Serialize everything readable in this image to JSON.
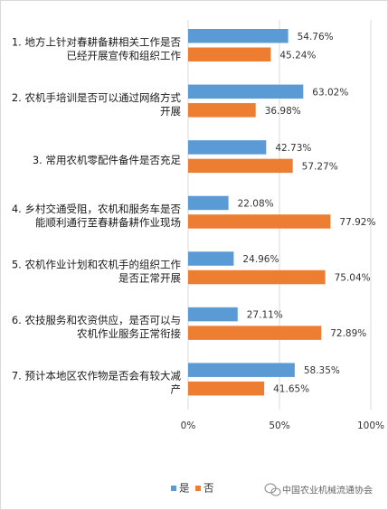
{
  "chart_data": {
    "type": "bar",
    "orientation": "horizontal",
    "categories": [
      [
        "1. 地方上针对春耕备耕相关工作是否",
        "已经开展宣传和组织工作"
      ],
      [
        "2. 农机手培训是否可以通过网络方式",
        "开展"
      ],
      [
        "3. 常用农机零配件备件是否充足"
      ],
      [
        "4. 乡村交通受阻，农机和服务车是否",
        "能顺利通行至春耕备耕作业现场"
      ],
      [
        "5. 农机作业计划和农机手的组织工作",
        "是否正常开展"
      ],
      [
        "6. 农技服务和农资供应，是否可以与",
        "农机作业服务正常衔接"
      ],
      [
        "7. 预计本地区农作物是否会有较大减",
        "产"
      ]
    ],
    "series": [
      {
        "name": "是",
        "color": "#5b9bd5",
        "values": [
          54.76,
          63.02,
          42.73,
          22.08,
          24.96,
          27.11,
          58.35
        ],
        "labels": [
          "54.76%",
          "63.02%",
          "42.73%",
          "22.08%",
          "24.96%",
          "27.11%",
          "58.35%"
        ]
      },
      {
        "name": "否",
        "color": "#ed7d31",
        "values": [
          45.24,
          36.98,
          57.27,
          77.92,
          75.04,
          72.89,
          41.65
        ],
        "labels": [
          "45.24%",
          "36.98%",
          "57.27%",
          "77.92%",
          "75.04%",
          "72.89%",
          "41.65%"
        ]
      }
    ],
    "xlim": [
      0,
      100
    ],
    "xticks": [
      "0%",
      "50%",
      "100%"
    ],
    "grid": true,
    "legend_position": "bottom"
  },
  "watermark": {
    "text": "中国农业机械流通协会",
    "icon": "wechat-icon"
  }
}
